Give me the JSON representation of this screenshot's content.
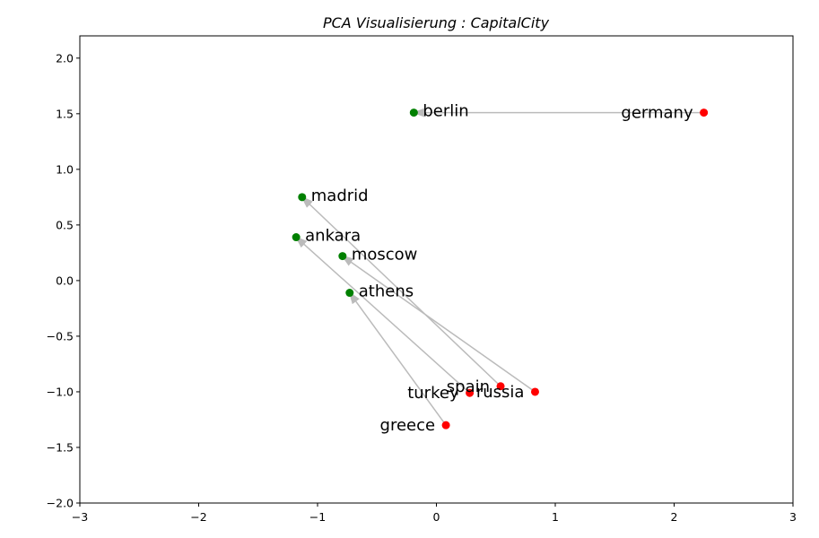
{
  "chart_data": {
    "type": "scatter",
    "title": "PCA Visualisierung : CapitalCity",
    "xlim": [
      -3,
      3
    ],
    "ylim": [
      -2,
      2.2
    ],
    "x_ticks": [
      "−3",
      "−2",
      "−1",
      "0",
      "1",
      "2",
      "3"
    ],
    "x_tick_values": [
      -3,
      -2,
      -1,
      0,
      1,
      2,
      3
    ],
    "y_ticks": [
      "−2.0",
      "−1.5",
      "−1.0",
      "−0.5",
      "0.0",
      "0.5",
      "1.0",
      "1.5",
      "2.0"
    ],
    "y_tick_values": [
      -2,
      -1.5,
      -1,
      -0.5,
      0,
      0.5,
      1,
      1.5,
      2
    ],
    "grid": false,
    "colors": {
      "country": "#ff0000",
      "capital": "#008000",
      "arrow": "#bbbbbb"
    },
    "pairs": [
      {
        "country": {
          "label": "germany",
          "x": 2.25,
          "y": 1.51
        },
        "capital": {
          "label": "berlin",
          "x": -0.19,
          "y": 1.51
        }
      },
      {
        "country": {
          "label": "spain",
          "x": 0.54,
          "y": -0.95
        },
        "capital": {
          "label": "madrid",
          "x": -1.13,
          "y": 0.75
        }
      },
      {
        "country": {
          "label": "turkey",
          "x": 0.28,
          "y": -1.01
        },
        "capital": {
          "label": "ankara",
          "x": -1.18,
          "y": 0.39
        }
      },
      {
        "country": {
          "label": "russia",
          "x": 0.83,
          "y": -1.0
        },
        "capital": {
          "label": "moscow",
          "x": -0.79,
          "y": 0.22
        }
      },
      {
        "country": {
          "label": "greece",
          "x": 0.08,
          "y": -1.3
        },
        "capital": {
          "label": "athens",
          "x": -0.73,
          "y": -0.11
        }
      }
    ]
  }
}
